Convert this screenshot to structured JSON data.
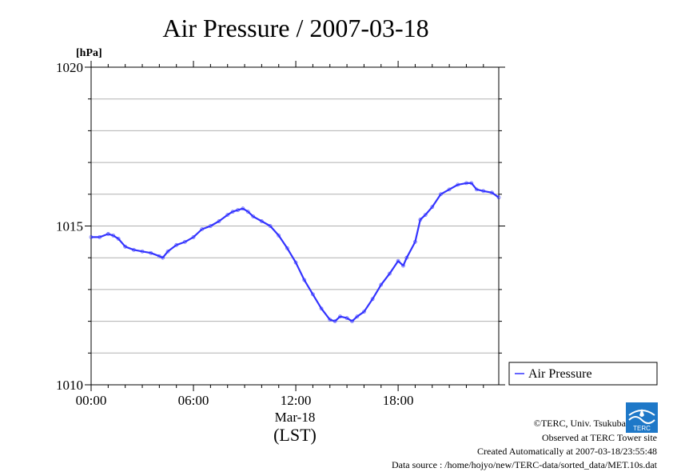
{
  "chart_data": {
    "type": "line",
    "title": "Air Pressure / 2007-03-18",
    "ylabel": "[hPa]",
    "xlabel": "(LST)",
    "x_date_label": "Mar-18",
    "ylim": [
      1010,
      1020
    ],
    "xlim": [
      0,
      23.9
    ],
    "y_ticks": [
      "1010",
      "1015",
      "1020"
    ],
    "x_ticks": [
      {
        "value": 0,
        "label": "00:00"
      },
      {
        "value": 6,
        "label": "06:00"
      },
      {
        "value": 12,
        "label": "12:00"
      },
      {
        "value": 18,
        "label": "18:00"
      }
    ],
    "grid": true,
    "legend_position": "right",
    "series": [
      {
        "name": "Air Pressure",
        "color": "#3333ff",
        "x": [
          0,
          0.5,
          1,
          1.3,
          1.6,
          2,
          2.5,
          3,
          3.5,
          4,
          4.2,
          4.5,
          5,
          5.5,
          6,
          6.5,
          7,
          7.5,
          8,
          8.3,
          8.6,
          8.9,
          9.2,
          9.5,
          10,
          10.5,
          11,
          11.5,
          12,
          12.5,
          13,
          13.5,
          14,
          14.3,
          14.6,
          15,
          15.3,
          15.6,
          16,
          16.5,
          17,
          17.5,
          18,
          18.3,
          18.5,
          19,
          19.3,
          19.6,
          20,
          20.5,
          21,
          21.5,
          22,
          22.3,
          22.6,
          23,
          23.5,
          23.9
        ],
        "values": [
          1014.65,
          1014.65,
          1014.75,
          1014.7,
          1014.6,
          1014.35,
          1014.25,
          1014.2,
          1014.15,
          1014.05,
          1014.0,
          1014.2,
          1014.4,
          1014.5,
          1014.65,
          1014.9,
          1015.0,
          1015.15,
          1015.35,
          1015.45,
          1015.5,
          1015.55,
          1015.45,
          1015.3,
          1015.15,
          1015.0,
          1014.7,
          1014.3,
          1013.85,
          1013.3,
          1012.85,
          1012.4,
          1012.05,
          1012.0,
          1012.15,
          1012.1,
          1012.0,
          1012.15,
          1012.3,
          1012.7,
          1013.15,
          1013.5,
          1013.9,
          1013.75,
          1014.0,
          1014.5,
          1015.2,
          1015.35,
          1015.6,
          1016.0,
          1016.15,
          1016.3,
          1016.35,
          1016.35,
          1016.15,
          1016.1,
          1016.05,
          1015.9
        ]
      }
    ]
  },
  "credits": {
    "copyright": "©TERC, Univ. Tsukuba",
    "observed": "Observed at TERC Tower site",
    "created": "Created Automatically at 2007-03-18/23:55:48",
    "source": "Data source : /home/hojyo/new/TERC-data/sorted_data/MET.10s.dat"
  },
  "logo_text": "TERC"
}
